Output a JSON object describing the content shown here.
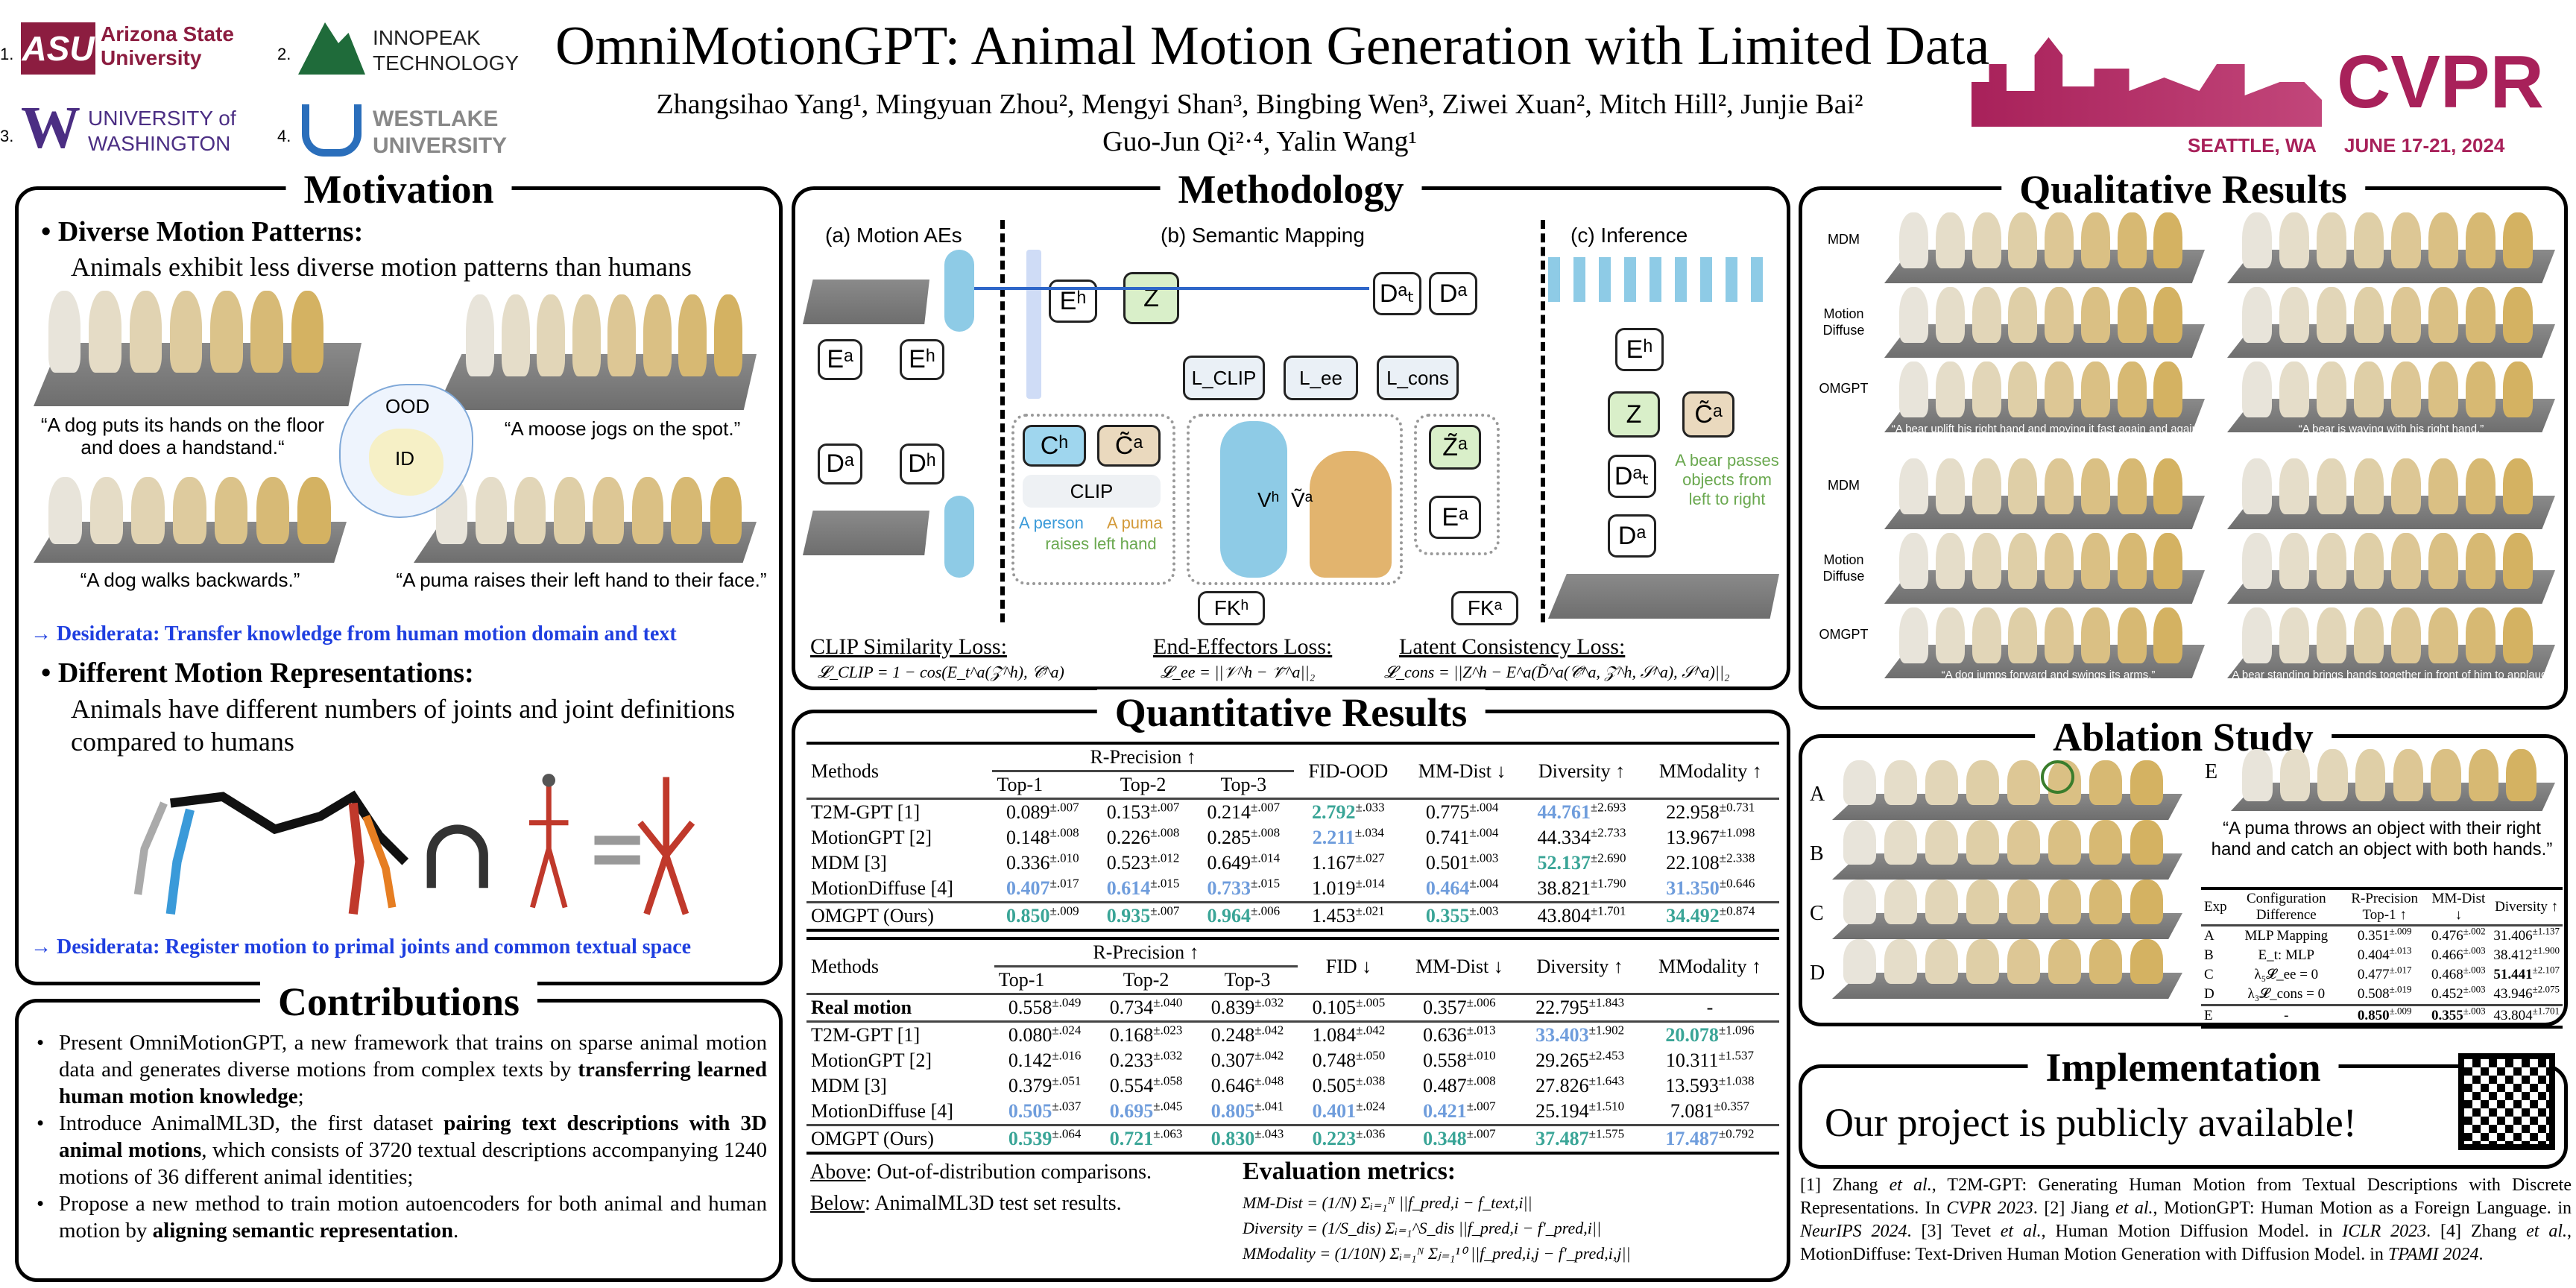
{
  "header": {
    "title": "OmniMotionGPT: Animal Motion Generation with Limited Data",
    "authors_line1": "Zhangsihao Yang¹, Mingyuan Zhou², Mengyi Shan³, Bingbing Wen³, Ziwei Xuan², Mitch Hill², Junjie Bai²",
    "authors_line2": "Guo-Jun Qi²·⁴, Yalin Wang¹",
    "affiliations": [
      {
        "num": "1.",
        "name": "Arizona State University",
        "logo": "ASU"
      },
      {
        "num": "2.",
        "name": "INNOPEAK TECHNOLOGY"
      },
      {
        "num": "3.",
        "name": "UNIVERSITY of WASHINGTON",
        "logo": "W"
      },
      {
        "num": "4.",
        "name": "WESTLAKE UNIVERSITY"
      }
    ],
    "conference": "CVPR",
    "location": "SEATTLE, WA",
    "dates": "JUNE 17-21, 2024",
    "colors": {
      "asu": "#8c1d40",
      "uw": "#4b2e83",
      "cvpr": "#a8215a",
      "innopeak": "#1f6b3a"
    }
  },
  "motivation": {
    "title": "Motivation",
    "point1_title": "Diverse Motion Patterns:",
    "point1_text": "Animals exhibit less diverse motion patterns than humans",
    "captions": [
      "“A dog puts its hands on the floor and does a handstand.“",
      "“A moose jogs on the spot.”",
      "“A dog walks backwards.”",
      "“A puma raises their left hand to their face.”"
    ],
    "ood_label": "OOD",
    "id_label": "ID",
    "desiderata1": "→ Desiderata: Transfer knowledge from human motion domain and text",
    "point2_title": "Different Motion Representations:",
    "point2_text": "Animals have different numbers of joints and joint definitions compared to humans",
    "desiderata2": "→ Desiderata: Register motion to primal joints and common textual space"
  },
  "contributions": {
    "title": "Contributions",
    "items": [
      {
        "pre": "Present OmniMotionGPT, a new framework that trains on sparse animal motion data and generates diverse motions from complex texts by ",
        "bold": "transferring learned human motion knowledge",
        "post": ";"
      },
      {
        "pre": "Introduce AnimalML3D, the first dataset ",
        "bold": "pairing text descriptions with 3D animal motions",
        "post": ", which consists of 3720 textual descriptions accompanying 1240 motions of 36 different animal identities;"
      },
      {
        "pre": "Propose a new method to train motion autoencoders for both animal and human motion by ",
        "bold": "aligning semantic representation",
        "post": "."
      }
    ]
  },
  "methodology": {
    "title": "Methodology",
    "panel_a": "(a) Motion AEs",
    "panel_b": "(b) Semantic Mapping",
    "panel_c": "(c) Inference",
    "nodes": {
      "Eh": "Eʰ",
      "Ea": "Eᵃ",
      "Dh": "Dʰ",
      "Da": "Dᵃ",
      "Dat": "Dᵃₜ",
      "Z": "Z",
      "Ch": "Cʰ",
      "Ca": "C̃ᵃ",
      "CLIP": "CLIP",
      "Lclip": "L_CLIP",
      "Lee": "L_ee",
      "Lcons": "L_cons",
      "Za": "Z̃ᵃ",
      "FKh": "FKʰ",
      "FKa": "FKᵃ",
      "V": "Vʰ  Ṽᵃ"
    },
    "text_person": "A person",
    "text_puma": "A puma",
    "text_raises": "raises left hand",
    "text_bear": "A bear passes objects from left to right",
    "loss1_title": "CLIP Similarity Loss:",
    "loss1_formula": "𝓛_CLIP = 1 − cos(E_t^a(𝒵^h), 𝒞̃^a)",
    "loss2_title": "End-Effectors Loss:",
    "loss2_formula": "𝓛_ee = ||𝒱^h − 𝒱̃^a||₂",
    "loss3_title": "Latent Consistency Loss:",
    "loss3_formula": "𝓛_cons = ||Z^h − E^a(D̃^a(𝒞̃^a, 𝒵^h, 𝒮^a), 𝒮^a)||₂"
  },
  "quantitative": {
    "title": "Quantitative Results",
    "table1": {
      "headers": [
        "Methods",
        "R-Precision ↑",
        "FID-OOD",
        "MM-Dist ↓",
        "Diversity ↑",
        "MModality ↑"
      ],
      "subheaders": [
        "Top-1",
        "Top-2",
        "Top-3"
      ],
      "rows": [
        {
          "method": "T2M-GPT [1]",
          "cells": [
            [
              "0.089",
              "±.007",
              ""
            ],
            [
              "0.153",
              "±.007",
              ""
            ],
            [
              "0.214",
              "±.007",
              ""
            ],
            [
              "2.792",
              "±.033",
              "best"
            ],
            [
              "0.775",
              "±.004",
              ""
            ],
            [
              "44.761",
              "±2.693",
              "second"
            ],
            [
              "22.958",
              "±0.731",
              ""
            ]
          ]
        },
        {
          "method": "MotionGPT [2]",
          "cells": [
            [
              "0.148",
              "±.008",
              ""
            ],
            [
              "0.226",
              "±.008",
              ""
            ],
            [
              "0.285",
              "±.008",
              ""
            ],
            [
              "2.211",
              "±.034",
              "second"
            ],
            [
              "0.741",
              "±.004",
              ""
            ],
            [
              "44.334",
              "±2.733",
              ""
            ],
            [
              "13.967",
              "±1.098",
              ""
            ]
          ]
        },
        {
          "method": "MDM [3]",
          "cells": [
            [
              "0.336",
              "±.010",
              ""
            ],
            [
              "0.523",
              "±.012",
              ""
            ],
            [
              "0.649",
              "±.014",
              ""
            ],
            [
              "1.167",
              "±.027",
              ""
            ],
            [
              "0.501",
              "±.003",
              ""
            ],
            [
              "52.137",
              "±2.690",
              "best"
            ],
            [
              "22.108",
              "±2.338",
              ""
            ]
          ]
        },
        {
          "method": "MotionDiffuse [4]",
          "cells": [
            [
              "0.407",
              "±.017",
              "second"
            ],
            [
              "0.614",
              "±.015",
              "second"
            ],
            [
              "0.733",
              "±.015",
              "second"
            ],
            [
              "1.019",
              "±.014",
              ""
            ],
            [
              "0.464",
              "±.004",
              "second"
            ],
            [
              "38.821",
              "±1.790",
              ""
            ],
            [
              "31.350",
              "±0.646",
              "second"
            ]
          ]
        },
        {
          "method": "OMGPT (Ours)",
          "cells": [
            [
              "0.850",
              "±.009",
              "best"
            ],
            [
              "0.935",
              "±.007",
              "best"
            ],
            [
              "0.964",
              "±.006",
              "best"
            ],
            [
              "1.453",
              "±.021",
              ""
            ],
            [
              "0.355",
              "±.003",
              "best"
            ],
            [
              "43.804",
              "±1.701",
              ""
            ],
            [
              "34.492",
              "±0.874",
              "best"
            ]
          ]
        }
      ]
    },
    "table2": {
      "headers": [
        "Methods",
        "R-Precision ↑",
        "FID ↓",
        "MM-Dist ↓",
        "Diversity ↑",
        "MModality ↑"
      ],
      "subheaders": [
        "Top-1",
        "Top-2",
        "Top-3"
      ],
      "rows": [
        {
          "method": "Real motion",
          "cells": [
            [
              "0.558",
              "±.049",
              ""
            ],
            [
              "0.734",
              "±.040",
              ""
            ],
            [
              "0.839",
              "±.032",
              ""
            ],
            [
              "0.105",
              "±.005",
              ""
            ],
            [
              "0.357",
              "±.006",
              ""
            ],
            [
              "22.795",
              "±1.843",
              ""
            ],
            [
              "-",
              "",
              ""
            ]
          ]
        },
        {
          "method": "T2M-GPT [1]",
          "cells": [
            [
              "0.080",
              "±.024",
              ""
            ],
            [
              "0.168",
              "±.023",
              ""
            ],
            [
              "0.248",
              "±.042",
              ""
            ],
            [
              "1.084",
              "±.042",
              ""
            ],
            [
              "0.636",
              "±.013",
              ""
            ],
            [
              "33.403",
              "±1.902",
              "second"
            ],
            [
              "20.078",
              "±1.096",
              "best"
            ]
          ]
        },
        {
          "method": "MotionGPT [2]",
          "cells": [
            [
              "0.142",
              "±.016",
              ""
            ],
            [
              "0.233",
              "±.032",
              ""
            ],
            [
              "0.307",
              "±.042",
              ""
            ],
            [
              "0.748",
              "±.050",
              ""
            ],
            [
              "0.558",
              "±.010",
              ""
            ],
            [
              "29.265",
              "±2.453",
              ""
            ],
            [
              "10.311",
              "±1.537",
              ""
            ]
          ]
        },
        {
          "method": "MDM [3]",
          "cells": [
            [
              "0.379",
              "±.051",
              ""
            ],
            [
              "0.554",
              "±.058",
              ""
            ],
            [
              "0.646",
              "±.048",
              ""
            ],
            [
              "0.505",
              "±.038",
              ""
            ],
            [
              "0.487",
              "±.008",
              ""
            ],
            [
              "27.826",
              "±1.643",
              ""
            ],
            [
              "13.593",
              "±1.038",
              ""
            ]
          ]
        },
        {
          "method": "MotionDiffuse [4]",
          "cells": [
            [
              "0.505",
              "±.037",
              "second"
            ],
            [
              "0.695",
              "±.045",
              "second"
            ],
            [
              "0.805",
              "±.041",
              "second"
            ],
            [
              "0.401",
              "±.024",
              "second"
            ],
            [
              "0.421",
              "±.007",
              "second"
            ],
            [
              "25.194",
              "±1.510",
              ""
            ],
            [
              "7.081",
              "±0.357",
              ""
            ]
          ]
        },
        {
          "method": "OMGPT (Ours)",
          "cells": [
            [
              "0.539",
              "±.064",
              "best"
            ],
            [
              "0.721",
              "±.063",
              "best"
            ],
            [
              "0.830",
              "±.043",
              "best"
            ],
            [
              "0.223",
              "±.036",
              "best"
            ],
            [
              "0.348",
              "±.007",
              "best"
            ],
            [
              "37.487",
              "±1.575",
              "best"
            ],
            [
              "17.487",
              "±0.792",
              "second"
            ]
          ]
        }
      ]
    },
    "note_above_label": "Above",
    "note_above": ": Out-of-distribution comparisons.",
    "note_below_label": "Below",
    "note_below": ": AnimalML3D test set results.",
    "metrics_title": "Evaluation metrics:",
    "metric_mmdist": "MM-Dist = (1/N) Σᵢ₌₁ᴺ ||f_pred,i − f_text,i||",
    "metric_diversity": "Diversity = (1/S_dis) Σᵢ₌₁^S_dis ||f_pred,i − f′_pred,i||",
    "metric_mmodality": "MModality = (1/10N) Σᵢ₌₁ᴺ Σⱼ₌₁¹⁰ ||f_pred,i,j − f′_pred,i,j||"
  },
  "qualitative": {
    "title": "Qualitative Results",
    "row_labels": [
      "MDM",
      "Motion Diffuse",
      "OMGPT",
      "MDM",
      "Motion Diffuse",
      "OMGPT"
    ],
    "captions": [
      "“A bear uplift his right hand and moving it fast again and again.”",
      "“A bear is waving with his right hand.”",
      "“A dog jumps forward and swings its arms.”",
      "“A bear standing brings hands together in front of him to applaud.”"
    ]
  },
  "ablation": {
    "title": "Ablation Study",
    "row_labels": [
      "A",
      "B",
      "C",
      "D",
      "E"
    ],
    "prompt": "“A puma throws an object with their right hand and catch an object with both hands.”",
    "headers": [
      "Exp",
      "Configuration Difference",
      "R-Precision Top-1 ↑",
      "MM-Dist ↓",
      "Diversity ↑"
    ],
    "rows": [
      {
        "exp": "A",
        "config": "MLP Mapping",
        "cells": [
          [
            "0.351",
            "±.009",
            ""
          ],
          [
            "0.476",
            "±.002",
            ""
          ],
          [
            "31.406",
            "±1.137",
            ""
          ]
        ]
      },
      {
        "exp": "B",
        "config": "E_t: MLP",
        "cells": [
          [
            "0.404",
            "±.013",
            ""
          ],
          [
            "0.466",
            "±.003",
            ""
          ],
          [
            "38.412",
            "±1.900",
            ""
          ]
        ]
      },
      {
        "exp": "C",
        "config": "λ₅𝓛_ee = 0",
        "cells": [
          [
            "0.477",
            "±.017",
            ""
          ],
          [
            "0.468",
            "±.003",
            ""
          ],
          [
            "51.441",
            "±2.107",
            "bold"
          ]
        ]
      },
      {
        "exp": "D",
        "config": "λ₃𝓛_cons = 0",
        "cells": [
          [
            "0.508",
            "±.019",
            ""
          ],
          [
            "0.452",
            "±.003",
            ""
          ],
          [
            "43.946",
            "±2.075",
            ""
          ]
        ]
      },
      {
        "exp": "E",
        "config": "-",
        "cells": [
          [
            "0.850",
            "±.009",
            "bold"
          ],
          [
            "0.355",
            "±.003",
            "bold"
          ],
          [
            "43.804",
            "±1.701",
            ""
          ]
        ]
      }
    ]
  },
  "implementation": {
    "title": "Implementation",
    "text": "Our project is publicly available!"
  },
  "references": [
    {
      "n": "[1]",
      "author": "Zhang ",
      "etal": "et al.",
      "text": ", T2M-GPT: Generating Human Motion from Textual Descriptions with Discrete Representations. In ",
      "venue": "CVPR 2023",
      "end": "."
    },
    {
      "n": "[2]",
      "author": "Jiang ",
      "etal": "et al.",
      "text": ", MotionGPT: Human Motion as a Foreign Language. in ",
      "venue": "NeurIPS 2024",
      "end": "."
    },
    {
      "n": "[3]",
      "author": "Tevet ",
      "etal": "et al.",
      "text": ", Human Motion Diffusion Model. in ",
      "venue": "ICLR 2023",
      "end": "."
    },
    {
      "n": "[4]",
      "author": "Zhang ",
      "etal": "et al.",
      "text": ", MotionDiffuse: Text-Driven Human Motion Generation with Diffusion Model. in ",
      "venue": "TPAMI 2024",
      "end": "."
    }
  ]
}
